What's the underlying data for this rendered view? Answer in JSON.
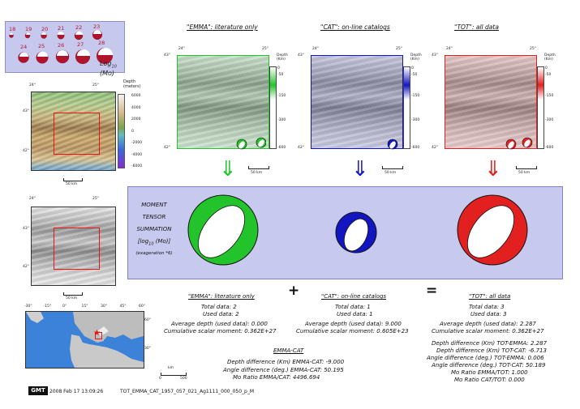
{
  "legend": {
    "magnitudes_row1": [
      "18",
      "19",
      "20",
      "21",
      "22",
      "23"
    ],
    "magnitudes_row2": [
      "24",
      "25",
      "26",
      "27",
      "28"
    ],
    "title_prefix": "Log",
    "title_sub": "10",
    "title_suffix": " (Mo)"
  },
  "depth_colorbar": {
    "title": "Depth (meters)",
    "ticks": [
      "6000",
      "4000",
      "2000",
      "0",
      "-2000",
      "-4000",
      "-6000"
    ]
  },
  "panels": [
    {
      "title": "\"EMMA\": literature only",
      "color": "#23c42b",
      "cbar_ticks": [
        "0",
        "-50",
        "-150",
        "-300",
        "-600"
      ],
      "cbar_title": "Depth (Km)",
      "scale": "50 km"
    },
    {
      "title": "\"CAT\": on-line catalogs",
      "color": "#1216c0",
      "cbar_ticks": [
        "0",
        "-50",
        "-150",
        "-300",
        "-600"
      ],
      "cbar_title": "Depth (Km)",
      "scale": "50 km"
    },
    {
      "title": "\"TOT\": all data",
      "color": "#e32020",
      "cbar_ticks": [
        "0",
        "-50",
        "-150",
        "-300",
        "-600"
      ],
      "cbar_title": "Depth (Km)",
      "scale": "50 km"
    }
  ],
  "map_labels": {
    "lon_left": "24°",
    "lon_right": "25°",
    "lat_top": "43°",
    "lat_bottom": "42°",
    "scale": "50 km",
    "world_lons": [
      "-30°",
      "-15°",
      "0°",
      "15°",
      "30°",
      "45°",
      "60°"
    ],
    "world_lats": [
      "60°",
      "30°"
    ],
    "world_scale_unit": "km",
    "world_scale_ticks": [
      "0",
      "500"
    ]
  },
  "summation": {
    "line1": "MOMENT",
    "line2": "TENSOR",
    "line3": "SUMMATION",
    "line4_prefix": "[log",
    "line4_sub": "10",
    "line4_suffix": " (Mo)]",
    "line5": "(exageration *6)"
  },
  "stats": {
    "emma": {
      "title": "\"EMMA\": literature only",
      "total": "Total data:   2",
      "used": "Used data:   2",
      "avg_depth": "Average depth (used data):     0.000",
      "moment": "Cumulative scalar moment: 0.362E+27"
    },
    "cat": {
      "title": "\"CAT\": on-line catalogs",
      "total": "Total data:   1",
      "used": "Used data:   1",
      "avg_depth": "Average depth (used data):     9.000",
      "moment": "Cumulative scalar moment: 0.605E+23"
    },
    "tot": {
      "title": "\"TOT\": all data",
      "total": "Total data:   3",
      "used": "Used data:   3",
      "avg_depth": "Average depth (used data):     2.287",
      "moment": "Cumulative scalar moment: 0.362E+27",
      "d1": "Depth difference (Km) TOT-EMMA:     2.287",
      "d2": "Depth difference (Km) TOT-CAT:    -6.713",
      "a1": "Angle difference (deg.) TOT-EMMA:     0.006",
      "a2": "Angle difference (deg.) TOT-CAT:    50.189",
      "r1": "Mo Ratio EMMA/TOT:     1.000",
      "r2": "Mo Ratio CAT/TOT:     0.000"
    },
    "emma_cat": {
      "title": "EMMA-CAT",
      "depth": "Depth difference (Km) EMMA-CAT:    -9.000",
      "angle": "Angle difference (deg.) EMMA-CAT:    50.195",
      "ratio": "Mo Ratio EMMA/CAT:  4496.694"
    }
  },
  "operators": {
    "plus": "+",
    "equals": "="
  },
  "footer": {
    "logo": "GMT",
    "date": "2008 Feb 17 13:09:26",
    "filename": "TOT_EMMA_CAT_1957_057_021_Ag1111_000_050_p_M"
  },
  "colors": {
    "emma": "#23c42b",
    "cat": "#1216c0",
    "tot": "#e32020",
    "box": "#c8c9ef",
    "legend_beach": "#b0142a"
  },
  "chart_data": [
    {
      "type": "other",
      "name": "beachball_summation_emma",
      "log10_mo_exaggerated": "0.362E+27"
    },
    {
      "type": "other",
      "name": "beachball_summation_cat",
      "log10_mo_exaggerated": "0.605E+23"
    },
    {
      "type": "other",
      "name": "beachball_summation_tot",
      "log10_mo_exaggerated": "0.362E+27"
    }
  ]
}
